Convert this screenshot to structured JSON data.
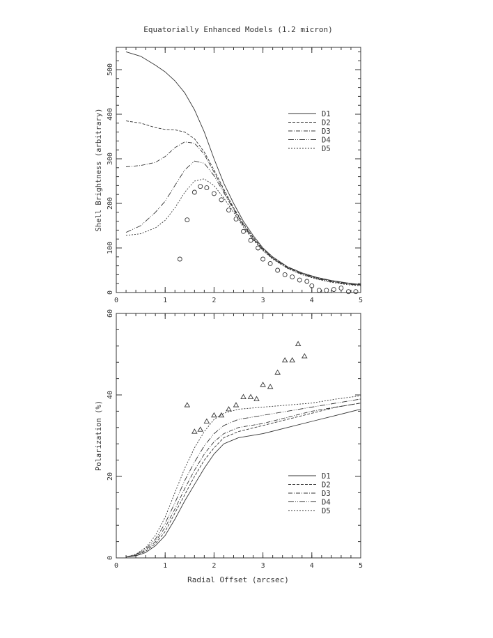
{
  "figure": {
    "title": "Equatorially Enhanced Models (1.2 micron)",
    "xlabel": "Radial Offset (arcsec)"
  },
  "chart_data": [
    {
      "type": "line",
      "ylabel": "Shell Brightness (arbitrary)",
      "xlim": [
        0,
        5
      ],
      "ylim": [
        0,
        550
      ],
      "xticks": [
        0,
        1,
        2,
        3,
        4,
        5
      ],
      "yticks": [
        0,
        100,
        200,
        300,
        400,
        500
      ],
      "legend_position": "upper-right",
      "series": [
        {
          "name": "D1",
          "dash": "",
          "x": [
            0.2,
            0.5,
            0.8,
            1.0,
            1.2,
            1.4,
            1.6,
            1.8,
            2.0,
            2.2,
            2.4,
            2.6,
            2.8,
            3.0,
            3.2,
            3.5,
            3.8,
            4.1,
            4.4,
            4.7,
            5.0
          ],
          "y": [
            540,
            530,
            510,
            495,
            475,
            448,
            410,
            360,
            300,
            245,
            200,
            160,
            128,
            100,
            80,
            58,
            44,
            34,
            27,
            22,
            18
          ]
        },
        {
          "name": "D2",
          "dash": "4,2",
          "x": [
            0.2,
            0.5,
            0.8,
            1.0,
            1.2,
            1.4,
            1.6,
            1.8,
            2.0,
            2.2,
            2.4,
            2.6,
            2.8,
            3.0,
            3.2,
            3.5,
            3.8,
            4.1,
            4.4,
            4.7,
            5.0
          ],
          "y": [
            385,
            380,
            370,
            366,
            365,
            360,
            345,
            315,
            275,
            232,
            190,
            155,
            124,
            98,
            78,
            57,
            43,
            33,
            26,
            21,
            17
          ]
        },
        {
          "name": "D3",
          "dash": "6,2,1,2",
          "x": [
            0.2,
            0.5,
            0.8,
            1.0,
            1.2,
            1.4,
            1.6,
            1.8,
            2.0,
            2.2,
            2.4,
            2.6,
            2.8,
            3.0,
            3.2,
            3.5,
            3.8,
            4.1,
            4.4,
            4.7,
            5.0
          ],
          "y": [
            282,
            285,
            292,
            305,
            325,
            338,
            335,
            310,
            270,
            228,
            188,
            152,
            122,
            97,
            77,
            56,
            42,
            32,
            25,
            20,
            17
          ]
        },
        {
          "name": "D4",
          "dash": "8,2,1,2,1,2",
          "x": [
            0.2,
            0.5,
            0.8,
            1.0,
            1.2,
            1.4,
            1.6,
            1.8,
            2.0,
            2.2,
            2.4,
            2.6,
            2.8,
            3.0,
            3.2,
            3.5,
            3.8,
            4.1,
            4.4,
            4.7,
            5.0
          ],
          "y": [
            135,
            150,
            180,
            205,
            240,
            275,
            295,
            290,
            262,
            224,
            186,
            150,
            120,
            96,
            76,
            55,
            41,
            31,
            24,
            19,
            16
          ]
        },
        {
          "name": "D5",
          "dash": "2,2",
          "x": [
            0.2,
            0.5,
            0.8,
            1.0,
            1.2,
            1.4,
            1.6,
            1.8,
            2.0,
            2.2,
            2.4,
            2.6,
            2.8,
            3.0,
            3.2,
            3.5,
            3.8,
            4.1,
            4.4,
            4.7,
            5.0
          ],
          "y": [
            128,
            132,
            145,
            162,
            190,
            225,
            250,
            255,
            240,
            212,
            180,
            147,
            118,
            94,
            75,
            54,
            40,
            30,
            23,
            18,
            15
          ]
        }
      ],
      "observed": {
        "marker": "circle",
        "x": [
          1.3,
          1.45,
          1.6,
          1.72,
          1.85,
          2.0,
          2.15,
          2.3,
          2.45,
          2.6,
          2.75,
          2.9,
          3.0,
          3.15,
          3.3,
          3.45,
          3.6,
          3.75,
          3.9,
          4.0,
          4.15,
          4.3,
          4.45,
          4.6,
          4.75,
          4.9
        ],
        "y": [
          75,
          163,
          225,
          238,
          235,
          222,
          208,
          185,
          165,
          137,
          117,
          100,
          75,
          65,
          50,
          40,
          35,
          28,
          25,
          15,
          5,
          5,
          7,
          10,
          2,
          2
        ]
      }
    },
    {
      "type": "line",
      "ylabel": "Polarization (%)",
      "xlim": [
        0,
        5
      ],
      "ylim": [
        0,
        60
      ],
      "xticks": [
        0,
        1,
        2,
        3,
        4,
        5
      ],
      "yticks": [
        0,
        20,
        40,
        60
      ],
      "legend_position": "lower-right",
      "series": [
        {
          "name": "D1",
          "dash": "",
          "x": [
            0.2,
            0.4,
            0.6,
            0.8,
            1.0,
            1.2,
            1.4,
            1.6,
            1.8,
            2.0,
            2.2,
            2.5,
            3.0,
            3.5,
            4.0,
            4.5,
            5.0
          ],
          "y": [
            0.2,
            0.5,
            1.3,
            3,
            5.5,
            9.5,
            14,
            18,
            22,
            25.5,
            28,
            29.5,
            30.5,
            32,
            33.5,
            35,
            36.5
          ]
        },
        {
          "name": "D2",
          "dash": "4,2",
          "x": [
            0.2,
            0.4,
            0.6,
            0.8,
            1.0,
            1.2,
            1.4,
            1.6,
            1.8,
            2.0,
            2.2,
            2.5,
            3.0,
            3.5,
            4.0,
            4.5,
            5.0
          ],
          "y": [
            0.2,
            0.6,
            1.6,
            3.5,
            6.5,
            11,
            15.5,
            20,
            24,
            27,
            29.5,
            31,
            32.5,
            34,
            35.5,
            37,
            38
          ]
        },
        {
          "name": "D3",
          "dash": "6,2,1,2",
          "x": [
            0.2,
            0.4,
            0.6,
            0.8,
            1.0,
            1.2,
            1.4,
            1.6,
            1.8,
            2.0,
            2.2,
            2.5,
            3.0,
            3.5,
            4.0,
            4.5,
            5.0
          ],
          "y": [
            0.2,
            0.7,
            1.9,
            4,
            7.5,
            12,
            17,
            21.5,
            25.5,
            28.5,
            30.5,
            32,
            33,
            34.5,
            36,
            37,
            38
          ]
        },
        {
          "name": "D4",
          "dash": "8,2,1,2,1,2",
          "x": [
            0.2,
            0.4,
            0.6,
            0.8,
            1.0,
            1.2,
            1.4,
            1.6,
            1.8,
            2.0,
            2.2,
            2.5,
            3.0,
            3.5,
            4.0,
            4.5,
            5.0
          ],
          "y": [
            0.2,
            0.8,
            2.2,
            4.6,
            8.5,
            13.5,
            19,
            23.5,
            27.5,
            30.5,
            32.5,
            34,
            35,
            36,
            37,
            38,
            39
          ]
        },
        {
          "name": "D5",
          "dash": "2,2",
          "x": [
            0.2,
            0.4,
            0.6,
            0.8,
            1.0,
            1.2,
            1.4,
            1.6,
            1.8,
            2.0,
            2.2,
            2.5,
            3.0,
            3.5,
            4.0,
            4.5,
            5.0
          ],
          "y": [
            0.2,
            0.9,
            2.5,
            5.5,
            10,
            16,
            22,
            27,
            31,
            34,
            35.5,
            36.5,
            37,
            37.5,
            38,
            39,
            39.8
          ]
        }
      ],
      "observed": {
        "marker": "triangle",
        "x": [
          1.45,
          1.6,
          1.72,
          1.85,
          2.0,
          2.15,
          2.3,
          2.45,
          2.6,
          2.75,
          2.87,
          3.0,
          3.15,
          3.3,
          3.45,
          3.6,
          3.72,
          3.85
        ],
        "y": [
          37.5,
          31,
          31.5,
          33.5,
          35,
          35,
          36.5,
          37.5,
          39.5,
          39.5,
          39,
          42.5,
          42,
          45.5,
          48.5,
          48.5,
          52.5,
          49.5
        ]
      }
    }
  ]
}
